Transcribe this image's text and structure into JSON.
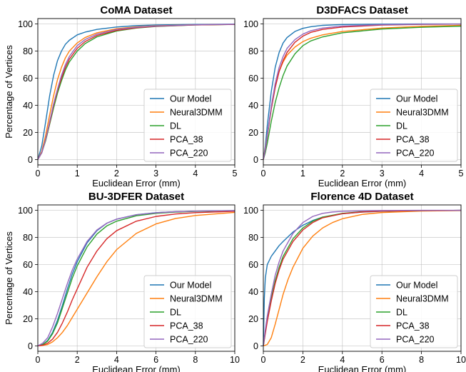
{
  "colors": {
    "Our Model": "#1f77b4",
    "Neural3DMM": "#ff7f0e",
    "DL": "#2ca02c",
    "PCA_38": "#d62728",
    "PCA_220": "#9467bd"
  },
  "chart_data": [
    {
      "type": "line",
      "title": "CoMA Dataset",
      "xlabel": "Euclidean Error (mm)",
      "ylabel": "Percentage of Vertices",
      "xlim": [
        0,
        5
      ],
      "ylim": [
        -4,
        104
      ],
      "xticks": [
        "0",
        "1",
        "2",
        "3",
        "4",
        "5"
      ],
      "yticks": [
        "0",
        "20",
        "40",
        "60",
        "80",
        "100"
      ],
      "grid": true,
      "legend": "lower-right",
      "series": [
        {
          "name": "Our Model",
          "x": [
            0,
            0.1,
            0.2,
            0.3,
            0.4,
            0.5,
            0.6,
            0.7,
            0.8,
            1.0,
            1.2,
            1.5,
            2.0,
            2.5,
            3.0,
            4.0,
            5.0
          ],
          "y": [
            0,
            10,
            28,
            47,
            62,
            73,
            80,
            85,
            88,
            92,
            94,
            96,
            97.8,
            98.8,
            99.3,
            99.7,
            99.9
          ]
        },
        {
          "name": "Neural3DMM",
          "x": [
            0,
            0.1,
            0.2,
            0.3,
            0.4,
            0.5,
            0.6,
            0.7,
            0.8,
            1.0,
            1.2,
            1.5,
            2.0,
            2.5,
            3.0,
            4.0,
            5.0
          ],
          "y": [
            0,
            6,
            18,
            33,
            47,
            59,
            68,
            75,
            80,
            86,
            90,
            93.5,
            96.5,
            97.9,
            98.7,
            99.4,
            99.7
          ]
        },
        {
          "name": "DL",
          "x": [
            0,
            0.1,
            0.2,
            0.3,
            0.4,
            0.5,
            0.6,
            0.7,
            0.8,
            1.0,
            1.2,
            1.5,
            2.0,
            2.5,
            3.0,
            4.0,
            5.0
          ],
          "y": [
            0,
            5,
            14,
            26,
            38,
            49,
            58,
            66,
            72,
            80,
            85.5,
            90.5,
            94.8,
            97,
            98.2,
            99.3,
            99.7
          ]
        },
        {
          "name": "PCA_38",
          "x": [
            0,
            0.1,
            0.2,
            0.3,
            0.4,
            0.5,
            0.6,
            0.7,
            0.8,
            1.0,
            1.2,
            1.5,
            2.0,
            2.5,
            3.0,
            4.0,
            5.0
          ],
          "y": [
            0,
            5,
            15,
            27,
            40,
            51,
            60,
            68,
            74,
            82,
            87,
            91.5,
            95.3,
            97.2,
            98.3,
            99.3,
            99.7
          ]
        },
        {
          "name": "PCA_220",
          "x": [
            0,
            0.1,
            0.2,
            0.3,
            0.4,
            0.5,
            0.6,
            0.7,
            0.8,
            1.0,
            1.2,
            1.5,
            2.0,
            2.5,
            3.0,
            4.0,
            5.0
          ],
          "y": [
            0,
            5,
            15,
            28,
            41,
            52,
            62,
            70,
            76,
            84,
            88.5,
            92.5,
            96,
            97.6,
            98.5,
            99.4,
            99.8
          ]
        }
      ]
    },
    {
      "type": "line",
      "title": "D3DFACS Dataset",
      "xlabel": "Euclidean Error (mm)",
      "ylabel": "",
      "xlim": [
        0,
        5
      ],
      "ylim": [
        -4,
        104
      ],
      "xticks": [
        "0",
        "1",
        "2",
        "3",
        "4",
        "5"
      ],
      "yticks": [
        "0",
        "20",
        "40",
        "60",
        "80",
        "100"
      ],
      "grid": true,
      "legend": "lower-right",
      "series": [
        {
          "name": "Our Model",
          "x": [
            0,
            0.05,
            0.1,
            0.2,
            0.3,
            0.4,
            0.5,
            0.6,
            0.8,
            1.0,
            1.2,
            1.5,
            2.0,
            3.0,
            4.0,
            5.0
          ],
          "y": [
            0,
            10,
            25,
            50,
            68,
            79,
            86,
            90,
            94.5,
            96.8,
            98,
            99,
            99.6,
            99.9,
            100,
            100
          ]
        },
        {
          "name": "Neural3DMM",
          "x": [
            0,
            0.05,
            0.1,
            0.2,
            0.3,
            0.4,
            0.5,
            0.6,
            0.8,
            1.0,
            1.2,
            1.5,
            2.0,
            3.0,
            4.0,
            5.0
          ],
          "y": [
            0,
            8,
            18,
            38,
            54,
            65,
            72,
            77,
            83,
            87,
            89.5,
            92,
            94.5,
            97,
            98.3,
            99
          ]
        },
        {
          "name": "DL",
          "x": [
            0,
            0.05,
            0.1,
            0.2,
            0.3,
            0.4,
            0.5,
            0.6,
            0.8,
            1.0,
            1.2,
            1.5,
            2.0,
            3.0,
            4.0,
            5.0
          ],
          "y": [
            0,
            5,
            12,
            28,
            42,
            53,
            62,
            69,
            78,
            84,
            87.5,
            90.5,
            93.5,
            96.3,
            97.6,
            98.4
          ]
        },
        {
          "name": "PCA_38",
          "x": [
            0,
            0.05,
            0.1,
            0.2,
            0.3,
            0.4,
            0.5,
            0.6,
            0.8,
            1.0,
            1.2,
            1.5,
            2.0,
            3.0,
            4.0,
            5.0
          ],
          "y": [
            0,
            7,
            17,
            37,
            53,
            65,
            73,
            79,
            86.5,
            91,
            93.8,
            96,
            97.8,
            99.2,
            99.7,
            99.9
          ]
        },
        {
          "name": "PCA_220",
          "x": [
            0,
            0.05,
            0.1,
            0.2,
            0.3,
            0.4,
            0.5,
            0.6,
            0.8,
            1.0,
            1.2,
            1.5,
            2.0,
            3.0,
            4.0,
            5.0
          ],
          "y": [
            0,
            7,
            18,
            39,
            56,
            68,
            76,
            82,
            88.5,
            92.5,
            95,
            97,
            98.5,
            99.5,
            99.8,
            99.9
          ]
        }
      ]
    },
    {
      "type": "line",
      "title": "BU-3DFER Dataset",
      "xlabel": "Euclidean Error (mm)",
      "ylabel": "Percentage of Vertices",
      "xlim": [
        0,
        10
      ],
      "ylim": [
        -4,
        104
      ],
      "xticks": [
        "0",
        "2",
        "4",
        "6",
        "8",
        "10"
      ],
      "yticks": [
        "0",
        "20",
        "40",
        "60",
        "80",
        "100"
      ],
      "grid": true,
      "legend": "lower-right",
      "series": [
        {
          "name": "Our Model",
          "x": [
            0,
            0.25,
            0.5,
            0.75,
            1.0,
            1.25,
            1.5,
            1.75,
            2.0,
            2.5,
            3.0,
            3.5,
            4.0,
            5.0,
            6.0,
            7.0,
            8.0,
            10.0
          ],
          "y": [
            0,
            1,
            4,
            10,
            19,
            30,
            42,
            53,
            62,
            76,
            85,
            90.5,
            93.5,
            96.8,
            98.3,
            99,
            99.4,
            99.8
          ]
        },
        {
          "name": "Neural3DMM",
          "x": [
            0,
            0.25,
            0.5,
            0.75,
            1.0,
            1.25,
            1.5,
            1.75,
            2.0,
            2.5,
            3.0,
            3.5,
            4.0,
            5.0,
            6.0,
            7.0,
            8.0,
            10.0
          ],
          "y": [
            0,
            0.3,
            1,
            3,
            6,
            10,
            15,
            21,
            27,
            39,
            51,
            62,
            71,
            83,
            90,
            94,
            96.2,
            98.5
          ]
        },
        {
          "name": "DL",
          "x": [
            0,
            0.25,
            0.5,
            0.75,
            1.0,
            1.25,
            1.5,
            1.75,
            2.0,
            2.5,
            3.0,
            3.5,
            4.0,
            5.0,
            6.0,
            7.0,
            8.0,
            10.0
          ],
          "y": [
            0,
            1,
            3.5,
            9,
            17,
            28,
            39,
            50,
            59,
            73,
            82.5,
            88.5,
            92,
            96,
            97.8,
            98.7,
            99.2,
            99.7
          ]
        },
        {
          "name": "PCA_38",
          "x": [
            0,
            0.25,
            0.5,
            0.75,
            1.0,
            1.25,
            1.5,
            1.75,
            2.0,
            2.5,
            3.0,
            3.5,
            4.0,
            5.0,
            6.0,
            7.0,
            8.0,
            10.0
          ],
          "y": [
            0,
            0.5,
            2,
            5,
            10,
            17,
            25,
            34,
            42,
            58,
            70,
            79,
            85,
            92,
            95.5,
            97.3,
            98.3,
            99.3
          ]
        },
        {
          "name": "PCA_220",
          "x": [
            0,
            0.25,
            0.5,
            0.75,
            1.0,
            1.25,
            1.5,
            1.75,
            2.0,
            2.5,
            3.0,
            3.5,
            4.0,
            5.0,
            6.0,
            7.0,
            8.0,
            10.0
          ],
          "y": [
            0,
            2,
            6,
            14,
            24,
            35,
            46,
            56,
            64,
            77,
            85.5,
            90.5,
            93.5,
            96.7,
            98.2,
            99,
            99.4,
            99.8
          ]
        }
      ]
    },
    {
      "type": "line",
      "title": "Florence 4D Dataset",
      "xlabel": "Euclidean Error (mm)",
      "ylabel": "",
      "xlim": [
        0,
        10
      ],
      "ylim": [
        -4,
        104
      ],
      "xticks": [
        "0",
        "2",
        "4",
        "6",
        "8",
        "10"
      ],
      "yticks": [
        "0",
        "20",
        "40",
        "60",
        "80",
        "100"
      ],
      "grid": true,
      "legend": "lower-right",
      "series": [
        {
          "name": "Our Model",
          "x": [
            0,
            0.05,
            0.1,
            0.2,
            0.4,
            0.6,
            0.8,
            1.0,
            1.5,
            2.0,
            2.5,
            3.0,
            4.0,
            5.0,
            6.0,
            8.0,
            10.0
          ],
          "y": [
            0,
            35,
            50,
            60,
            66,
            70,
            74,
            77,
            84,
            89,
            92.5,
            95,
            97.5,
            98.7,
            99.3,
            99.8,
            100
          ]
        },
        {
          "name": "Neural3DMM",
          "x": [
            0,
            0.2,
            0.4,
            0.6,
            0.8,
            1.0,
            1.25,
            1.5,
            2.0,
            2.5,
            3.0,
            3.5,
            4.0,
            5.0,
            6.0,
            8.0,
            10.0
          ],
          "y": [
            0,
            1,
            6,
            16,
            27,
            38,
            49,
            58,
            72,
            81,
            87,
            91,
            93.8,
            97,
            98.4,
            99.5,
            99.8
          ]
        },
        {
          "name": "DL",
          "x": [
            0,
            0.1,
            0.2,
            0.4,
            0.6,
            0.8,
            1.0,
            1.5,
            2.0,
            2.5,
            3.0,
            4.0,
            5.0,
            6.0,
            8.0,
            10.0
          ],
          "y": [
            0,
            10,
            20,
            35,
            48,
            58,
            66,
            79,
            87,
            92,
            95,
            97.8,
            99,
            99.5,
            99.8,
            100
          ]
        },
        {
          "name": "PCA_38",
          "x": [
            0,
            0.1,
            0.2,
            0.4,
            0.6,
            0.8,
            1.0,
            1.5,
            2.0,
            2.5,
            3.0,
            4.0,
            5.0,
            6.0,
            8.0,
            10.0
          ],
          "y": [
            0,
            9,
            18,
            33,
            46,
            56,
            64,
            77,
            85.5,
            91,
            94.5,
            97.5,
            98.8,
            99.4,
            99.8,
            100
          ]
        },
        {
          "name": "PCA_220",
          "x": [
            0,
            0.1,
            0.2,
            0.4,
            0.6,
            0.8,
            1.0,
            1.5,
            2.0,
            2.5,
            3.0,
            3.5,
            4.0,
            5.0,
            6.0,
            8.0,
            10.0
          ],
          "y": [
            0,
            12,
            22,
            38,
            52,
            62,
            70,
            83,
            91,
            95.5,
            97.8,
            98.8,
            99.3,
            99.7,
            99.9,
            100,
            100
          ]
        }
      ]
    }
  ]
}
